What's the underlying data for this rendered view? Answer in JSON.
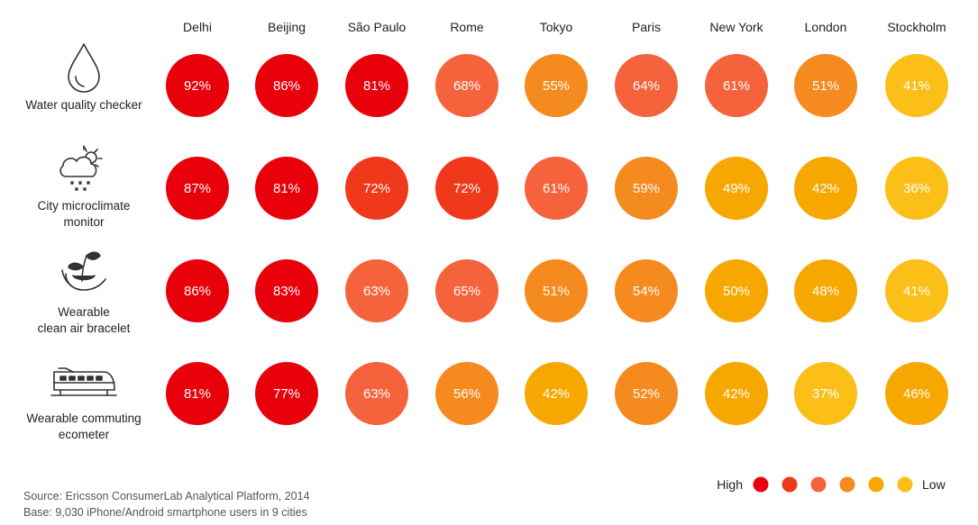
{
  "chart_data": {
    "type": "heatmap",
    "title": "",
    "columns": [
      "Delhi",
      "Beijing",
      "São Paulo",
      "Rome",
      "Tokyo",
      "Paris",
      "New York",
      "London",
      "Stockholm"
    ],
    "rows": [
      {
        "label": [
          "Water quality checker"
        ],
        "icon": "water-drop-icon",
        "values": [
          92,
          86,
          81,
          68,
          55,
          64,
          61,
          51,
          41
        ]
      },
      {
        "label": [
          "City microclimate",
          "monitor"
        ],
        "icon": "weather-icon",
        "values": [
          87,
          81,
          72,
          72,
          61,
          59,
          49,
          42,
          36
        ]
      },
      {
        "label": [
          "Wearable",
          "clean air bracelet"
        ],
        "icon": "plant-hand-icon",
        "values": [
          86,
          83,
          63,
          65,
          51,
          54,
          50,
          48,
          41
        ]
      },
      {
        "label": [
          "Wearable commuting",
          "ecometer"
        ],
        "icon": "train-icon",
        "values": [
          81,
          77,
          63,
          56,
          42,
          52,
          42,
          37,
          46
        ]
      }
    ],
    "value_suffix": "%",
    "legend": {
      "high_label": "High",
      "low_label": "Low",
      "colors": [
        "#e8000b",
        "#f0381a",
        "#f5633c",
        "#f58a1e",
        "#f7a800",
        "#fbbf17"
      ]
    }
  },
  "footer": {
    "source": "Source: Ericsson ConsumerLab Analytical Platform, 2014",
    "base": "Base: 9,030 iPhone/Android smartphone users in 9 cities"
  }
}
